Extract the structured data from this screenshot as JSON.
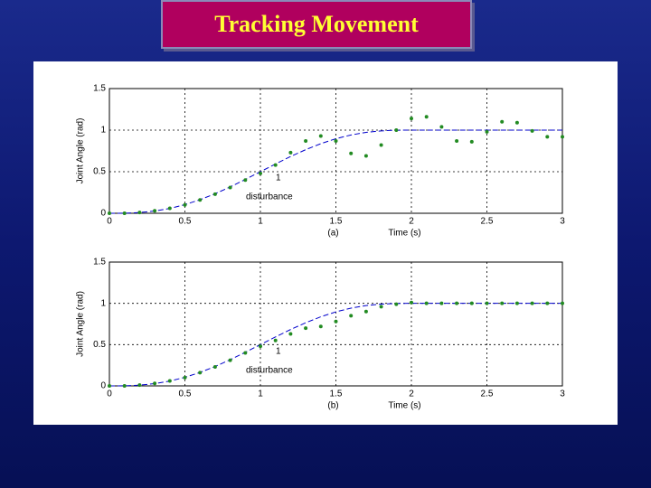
{
  "title": "Tracking Movement",
  "chart_data": [
    {
      "type": "line",
      "caption": "(a)",
      "xlabel": "Time (s)",
      "ylabel": "Joint Angle (rad)",
      "annotations": [
        "1",
        "disturbance"
      ],
      "x": [
        0,
        0.1,
        0.2,
        0.3,
        0.4,
        0.5,
        0.6,
        0.7,
        0.8,
        0.9,
        1.0,
        1.1,
        1.2,
        1.3,
        1.4,
        1.5,
        1.6,
        1.7,
        1.8,
        1.9,
        2.0,
        2.1,
        2.2,
        2.3,
        2.4,
        2.5,
        2.6,
        2.7,
        2.8,
        2.9,
        3.0
      ],
      "series": [
        {
          "color": "#0000cc",
          "style": "line",
          "values": [
            0,
            0.001,
            0.009,
            0.027,
            0.058,
            0.104,
            0.163,
            0.235,
            0.317,
            0.407,
            0.5,
            0.593,
            0.683,
            0.765,
            0.837,
            0.897,
            0.942,
            0.973,
            0.991,
            0.999,
            1,
            1,
            1,
            1,
            1,
            1,
            1,
            1,
            1,
            1,
            1
          ]
        },
        {
          "color": "#228b22",
          "style": "dots",
          "values": [
            0,
            0,
            0.01,
            0.03,
            0.06,
            0.1,
            0.16,
            0.23,
            0.31,
            0.4,
            0.48,
            0.58,
            0.73,
            0.87,
            0.93,
            0.87,
            0.72,
            0.69,
            0.82,
            1.0,
            1.14,
            1.16,
            1.04,
            0.87,
            0.86,
            0.98,
            1.1,
            1.09,
            0.99,
            0.92,
            0.92
          ]
        }
      ],
      "xlim": [
        0,
        3
      ],
      "ylim": [
        0,
        1.5
      ],
      "xticks": [
        0,
        0.5,
        1,
        1.5,
        2,
        2.5,
        3
      ],
      "yticks": [
        0,
        0.5,
        1,
        1.5
      ],
      "grid": true
    },
    {
      "type": "line",
      "caption": "(b)",
      "xlabel": "Time (s)",
      "ylabel": "Joint Angle (rad)",
      "annotations": [
        "1",
        "disturbance"
      ],
      "x": [
        0,
        0.1,
        0.2,
        0.3,
        0.4,
        0.5,
        0.6,
        0.7,
        0.8,
        0.9,
        1.0,
        1.1,
        1.2,
        1.3,
        1.4,
        1.5,
        1.6,
        1.7,
        1.8,
        1.9,
        2.0,
        2.1,
        2.2,
        2.3,
        2.4,
        2.5,
        2.6,
        2.7,
        2.8,
        2.9,
        3.0
      ],
      "series": [
        {
          "color": "#0000cc",
          "style": "line",
          "values": [
            0,
            0.001,
            0.009,
            0.027,
            0.058,
            0.104,
            0.163,
            0.235,
            0.317,
            0.407,
            0.5,
            0.593,
            0.683,
            0.765,
            0.837,
            0.897,
            0.942,
            0.973,
            0.991,
            0.999,
            1,
            1,
            1,
            1,
            1,
            1,
            1,
            1,
            1,
            1,
            1
          ]
        },
        {
          "color": "#228b22",
          "style": "dots",
          "values": [
            0,
            0,
            0.01,
            0.03,
            0.06,
            0.1,
            0.16,
            0.23,
            0.31,
            0.4,
            0.48,
            0.55,
            0.63,
            0.7,
            0.72,
            0.78,
            0.85,
            0.9,
            0.96,
            0.99,
            1.01,
            1.0,
            1.0,
            1.0,
            1.0,
            1.0,
            1.0,
            1.0,
            1.0,
            1.0,
            1.0
          ]
        }
      ],
      "xlim": [
        0,
        3
      ],
      "ylim": [
        0,
        1.5
      ],
      "xticks": [
        0,
        0.5,
        1,
        1.5,
        2,
        2.5,
        3
      ],
      "yticks": [
        0,
        0.5,
        1,
        1.5
      ],
      "grid": true
    }
  ]
}
